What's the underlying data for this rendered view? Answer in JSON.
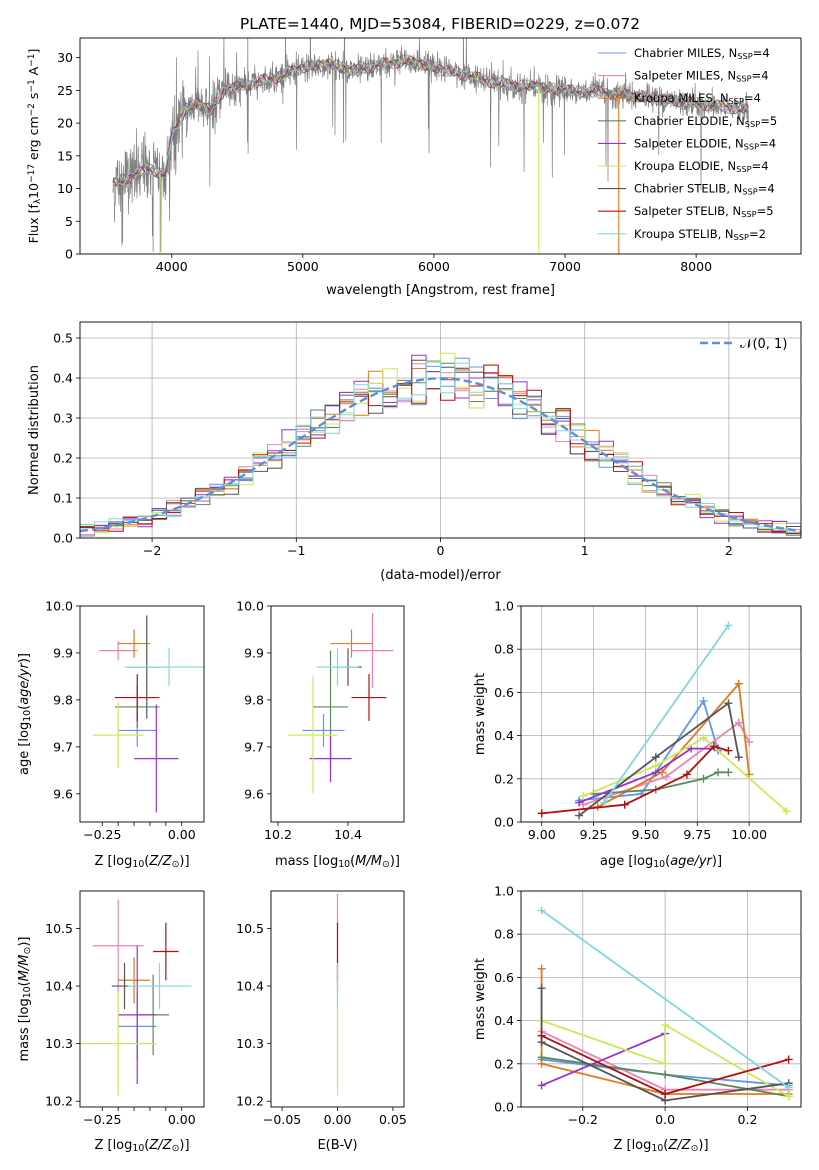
{
  "figure": {
    "title": "PLATE=1440, MJD=53084, FIBERID=0229, z=0.072"
  },
  "colors": {
    "Chabrier MILES": "#6495ed",
    "Salpeter MILES": "#ee82b4",
    "Kroupa MILES": "#e07a1f",
    "Chabrier ELODIE": "#5a8a5a",
    "Salpeter ELODIE": "#9932cc",
    "Kroupa ELODIE": "#cde85a",
    "Chabrier STELIB": "#555555",
    "Salpeter STELIB": "#b01010",
    "Kroupa STELIB": "#7fd8e0"
  },
  "legend_spectrum": [
    {
      "label": "Chabrier MILES, N",
      "sub": "SSP",
      "suffix": "=4",
      "color_key": "Chabrier MILES"
    },
    {
      "label": "Salpeter MILES, N",
      "sub": "SSP",
      "suffix": "=4",
      "color_key": "Salpeter MILES"
    },
    {
      "label": "Kroupa MILES, N",
      "sub": "SSP",
      "suffix": "=4",
      "color_key": "Kroupa MILES"
    },
    {
      "label": "Chabrier ELODIE, N",
      "sub": "SSP",
      "suffix": "=5",
      "color_key": "Chabrier ELODIE"
    },
    {
      "label": "Salpeter ELODIE, N",
      "sub": "SSP",
      "suffix": "=4",
      "color_key": "Salpeter ELODIE"
    },
    {
      "label": "Kroupa ELODIE, N",
      "sub": "SSP",
      "suffix": "=4",
      "color_key": "Kroupa ELODIE"
    },
    {
      "label": "Chabrier STELIB, N",
      "sub": "SSP",
      "suffix": "=4",
      "color_key": "Chabrier STELIB"
    },
    {
      "label": "Salpeter STELIB, N",
      "sub": "SSP",
      "suffix": "=5",
      "color_key": "Salpeter STELIB"
    },
    {
      "label": "Kroupa STELIB, N",
      "sub": "SSP",
      "suffix": "=2",
      "color_key": "Kroupa STELIB"
    }
  ],
  "chart_data": [
    {
      "id": "spectrum",
      "type": "line",
      "xlabel": "wavelength [Angstrom, rest frame]",
      "ylabel_parts": [
        "Flux [f",
        "λ",
        "10",
        "−17",
        " erg cm",
        "−2",
        " s",
        "−1",
        " A",
        "−1",
        "]"
      ],
      "xlim": [
        3300,
        8800
      ],
      "ylim": [
        0,
        33
      ],
      "xticks": [
        4000,
        5000,
        6000,
        7000,
        8000
      ],
      "yticks": [
        0,
        5,
        10,
        15,
        20,
        25,
        30
      ],
      "grid": false,
      "legend": "top-right",
      "continuum_knots": [
        [
          3550,
          10.5
        ],
        [
          3700,
          12
        ],
        [
          3850,
          13
        ],
        [
          3950,
          12
        ],
        [
          4000,
          18
        ],
        [
          4100,
          22
        ],
        [
          4200,
          23
        ],
        [
          4300,
          22
        ],
        [
          4400,
          25
        ],
        [
          4600,
          26
        ],
        [
          4800,
          27
        ],
        [
          5000,
          28.5
        ],
        [
          5200,
          29
        ],
        [
          5400,
          28
        ],
        [
          5600,
          29
        ],
        [
          5800,
          29.5
        ],
        [
          6000,
          28.5
        ],
        [
          6200,
          27.5
        ],
        [
          6500,
          26
        ],
        [
          6800,
          25.5
        ],
        [
          7000,
          25
        ],
        [
          7400,
          24.5
        ],
        [
          7800,
          23.5
        ],
        [
          8200,
          22.5
        ],
        [
          8400,
          22
        ]
      ],
      "series_x_range": [
        3550,
        8400
      ],
      "drops": [
        {
          "x": 3910,
          "y": 0,
          "series": "Kroupa ELODIE"
        },
        {
          "x": 6800,
          "y": 0,
          "series": "Kroupa ELODIE"
        },
        {
          "x": 7410,
          "y": 0,
          "series": "Kroupa MILES"
        }
      ]
    },
    {
      "id": "residuals",
      "type": "histogram",
      "xlabel": "(data-model)/error",
      "ylabel": "Normed distribution",
      "xlim": [
        -2.5,
        2.5
      ],
      "ylim": [
        0,
        0.54
      ],
      "xticks": [
        -2,
        -1,
        0,
        1,
        2
      ],
      "xtick_labels": [
        "−2",
        "−1",
        "0",
        "1",
        "2"
      ],
      "yticks": [
        0,
        0.1,
        0.2,
        0.3,
        0.4,
        0.5
      ],
      "ytick_labels": [
        "0.0",
        "0.1",
        "0.2",
        "0.3",
        "0.4",
        "0.5"
      ],
      "grid": true,
      "bin_width": 0.1,
      "bin_start": -2.5,
      "legend_label": "𝒩(0, 1)",
      "legend": "top-right"
    },
    {
      "id": "age-vs-Z",
      "type": "errorbar",
      "xlabel": "Z [log10(Z/Z⊙)]",
      "ylabel": "age  [log10(age/yr)]",
      "xlim": [
        -0.32,
        0.07
      ],
      "ylim": [
        9.54,
        10.0
      ],
      "xticks": [
        -0.25,
        -0.2,
        -0.15,
        -0.1,
        -0.05,
        0.0
      ],
      "xtick_labels": [
        "−0.25",
        "",
        "",
        "",
        "",
        "0.00"
      ],
      "yticks": [
        9.6,
        9.7,
        9.8,
        9.9,
        10.0
      ],
      "ytick_labels": [
        "9.6",
        "9.7",
        "9.8",
        "9.9",
        "10.0"
      ],
      "points": [
        {
          "series": "Chabrier MILES",
          "x": -0.14,
          "xerr": 0.06,
          "y": 9.735,
          "yerr": 0.035
        },
        {
          "series": "Salpeter MILES",
          "x": -0.2,
          "xerr": 0.06,
          "y": 9.905,
          "yerr": 0.02
        },
        {
          "series": "Kroupa MILES",
          "x": -0.15,
          "xerr": 0.05,
          "y": 9.92,
          "yerr": 0.03
        },
        {
          "series": "Chabrier ELODIE",
          "x": -0.14,
          "xerr": 0.07,
          "y": 9.785,
          "yerr": 0.045
        },
        {
          "series": "Salpeter ELODIE",
          "x": -0.08,
          "xerr": 0.07,
          "y": 9.675,
          "yerr": 0.115
        },
        {
          "series": "Kroupa ELODIE",
          "x": -0.2,
          "xerr": 0.08,
          "y": 9.725,
          "yerr": 0.07
        },
        {
          "series": "Chabrier STELIB",
          "x": -0.11,
          "xerr": 0.06,
          "y": 9.87,
          "yerr": 0.11
        },
        {
          "series": "Salpeter STELIB",
          "x": -0.14,
          "xerr": 0.07,
          "y": 9.805,
          "yerr": 0.05
        },
        {
          "series": "Kroupa STELIB",
          "x": -0.04,
          "xerr": 0.14,
          "y": 9.87,
          "yerr": 0.04
        }
      ]
    },
    {
      "id": "age-vs-mass",
      "type": "errorbar",
      "xlabel": "mass [log10(M/M⊙)]",
      "ylabel": "",
      "xlim": [
        10.18,
        10.56
      ],
      "ylim": [
        9.54,
        10.0
      ],
      "xticks": [
        10.2,
        10.4
      ],
      "xtick_labels": [
        "10.2",
        "10.4"
      ],
      "yticks": [
        9.6,
        9.7,
        9.8,
        9.9,
        10.0
      ],
      "ytick_labels": [
        "9.6",
        "9.7",
        "9.8",
        "9.9",
        "10.0"
      ],
      "points": [
        {
          "series": "Chabrier MILES",
          "x": 10.33,
          "xerr": 0.06,
          "y": 9.735,
          "yerr": 0.035
        },
        {
          "series": "Salpeter MILES",
          "x": 10.47,
          "xerr": 0.06,
          "y": 9.905,
          "yerr": 0.08
        },
        {
          "series": "Kroupa MILES",
          "x": 10.41,
          "xerr": 0.06,
          "y": 9.92,
          "yerr": 0.03
        },
        {
          "series": "Chabrier ELODIE",
          "x": 10.35,
          "xerr": 0.05,
          "y": 9.785,
          "yerr": 0.12
        },
        {
          "series": "Salpeter ELODIE",
          "x": 10.35,
          "xerr": 0.06,
          "y": 9.675,
          "yerr": 0.05
        },
        {
          "series": "Kroupa ELODIE",
          "x": 10.3,
          "xerr": 0.07,
          "y": 9.725,
          "yerr": 0.125
        },
        {
          "series": "Chabrier STELIB",
          "x": 10.4,
          "xerr": 0.04,
          "y": 9.87,
          "yerr": 0.04
        },
        {
          "series": "Salpeter STELIB",
          "x": 10.46,
          "xerr": 0.05,
          "y": 9.805,
          "yerr": 0.05
        },
        {
          "series": "Kroupa STELIB",
          "x": 10.37,
          "xerr": 0.06,
          "y": 9.87,
          "yerr": 0.04
        }
      ]
    },
    {
      "id": "weight-vs-age",
      "type": "line",
      "xlabel": "age  [log10(age/yr)]",
      "ylabel": "mass weight",
      "xlim": [
        8.9,
        10.25
      ],
      "ylim": [
        0,
        1.0
      ],
      "xticks": [
        9.0,
        9.25,
        9.5,
        9.75,
        10.0
      ],
      "xtick_labels": [
        "9.00",
        "9.25",
        "9.50",
        "9.75",
        "10.00"
      ],
      "yticks": [
        0,
        0.2,
        0.4,
        0.6,
        0.8,
        1.0
      ],
      "ytick_labels": [
        "0.0",
        "0.2",
        "0.4",
        "0.6",
        "0.8",
        "1.0"
      ],
      "grid": true,
      "series": [
        {
          "name": "Chabrier MILES",
          "x": [
            9.18,
            9.48,
            9.78,
            9.85
          ],
          "y": [
            0.1,
            0.13,
            0.56,
            0.33
          ]
        },
        {
          "name": "Salpeter MILES",
          "x": [
            9.2,
            9.6,
            9.95,
            10.0
          ],
          "y": [
            0.08,
            0.21,
            0.46,
            0.37
          ]
        },
        {
          "name": "Kroupa MILES",
          "x": [
            9.27,
            9.58,
            9.95,
            10.0
          ],
          "y": [
            0.07,
            0.23,
            0.64,
            0.22
          ]
        },
        {
          "name": "Chabrier ELODIE",
          "x": [
            9.25,
            9.55,
            9.78,
            9.85,
            9.9
          ],
          "y": [
            0.13,
            0.15,
            0.2,
            0.23,
            0.23
          ]
        },
        {
          "name": "Salpeter ELODIE",
          "x": [
            9.18,
            9.55,
            9.72,
            9.85
          ],
          "y": [
            0.09,
            0.23,
            0.34,
            0.34
          ]
        },
        {
          "name": "Kroupa ELODIE",
          "x": [
            9.2,
            9.55,
            9.78,
            10.18
          ],
          "y": [
            0.12,
            0.26,
            0.39,
            0.05
          ]
        },
        {
          "name": "Chabrier STELIB",
          "x": [
            9.18,
            9.55,
            9.9,
            9.95
          ],
          "y": [
            0.03,
            0.3,
            0.55,
            0.3
          ]
        },
        {
          "name": "Salpeter STELIB",
          "x": [
            9.0,
            9.4,
            9.7,
            9.83,
            9.9
          ],
          "y": [
            0.04,
            0.08,
            0.22,
            0.35,
            0.33
          ]
        },
        {
          "name": "Kroupa STELIB",
          "x": [
            9.3,
            9.9
          ],
          "y": [
            0.09,
            0.91
          ]
        }
      ]
    },
    {
      "id": "mass-vs-Z",
      "type": "errorbar",
      "xlabel": "Z [log10(Z/Z⊙)]",
      "ylabel": "mass [log10(M/M⊙)]",
      "xlim": [
        -0.32,
        0.07
      ],
      "ylim": [
        10.19,
        10.565
      ],
      "xticks": [
        -0.25,
        -0.2,
        -0.15,
        -0.1,
        -0.05,
        0.0
      ],
      "xtick_labels": [
        "−0.25",
        "",
        "",
        "",
        "",
        "0.00"
      ],
      "yticks": [
        10.2,
        10.3,
        10.4,
        10.5
      ],
      "ytick_labels": [
        "10.2",
        "10.3",
        "10.4",
        "10.5"
      ],
      "points": [
        {
          "series": "Chabrier MILES",
          "x": -0.14,
          "xerr": 0.06,
          "y": 10.33,
          "yerr": 0.06
        },
        {
          "series": "Salpeter MILES",
          "x": -0.2,
          "xerr": 0.08,
          "y": 10.47,
          "yerr": 0.08
        },
        {
          "series": "Kroupa MILES",
          "x": -0.15,
          "xerr": 0.05,
          "y": 10.41,
          "yerr": 0.04
        },
        {
          "series": "Chabrier ELODIE",
          "x": -0.09,
          "xerr": 0.05,
          "y": 10.35,
          "yerr": 0.07
        },
        {
          "series": "Salpeter ELODIE",
          "x": -0.14,
          "xerr": 0.06,
          "y": 10.35,
          "yerr": 0.12
        },
        {
          "series": "Kroupa ELODIE",
          "x": -0.2,
          "xerr": 0.12,
          "y": 10.3,
          "yerr": 0.09
        },
        {
          "series": "Chabrier STELIB",
          "x": -0.18,
          "xerr": 0.04,
          "y": 10.4,
          "yerr": 0.04
        },
        {
          "series": "Salpeter STELIB",
          "x": -0.05,
          "xerr": 0.04,
          "y": 10.46,
          "yerr": 0.05
        },
        {
          "series": "Kroupa STELIB",
          "x": -0.07,
          "xerr": 0.1,
          "y": 10.4,
          "yerr": 0.04
        }
      ]
    },
    {
      "id": "mass-vs-EBV",
      "type": "errorbar",
      "xlabel": "E(B-V)",
      "ylabel": "",
      "xlim": [
        -0.06,
        0.06
      ],
      "ylim": [
        10.19,
        10.565
      ],
      "xticks": [
        -0.05,
        0.0,
        0.05
      ],
      "xtick_labels": [
        "−0.05",
        "0.00",
        "0.05"
      ],
      "yticks": [
        10.2,
        10.3,
        10.4,
        10.5
      ],
      "ytick_labels": [
        "10.2",
        "10.3",
        "10.4",
        "10.5"
      ],
      "points": [
        {
          "series": "Kroupa ELODIE",
          "x": 0.0,
          "xerr": 0.0,
          "y": 10.31,
          "yerr": 0.1
        },
        {
          "series": "Salpeter MILES",
          "x": 0.0,
          "xerr": 0.0,
          "y": 10.48,
          "yerr": 0.08
        },
        {
          "series": "Salpeter STELIB",
          "x": 0.0,
          "xerr": 0.0,
          "y": 10.46,
          "yerr": 0.05
        },
        {
          "series": "Kroupa STELIB",
          "x": 0.0,
          "xerr": 0.0,
          "y": 10.4,
          "yerr": 0.04
        }
      ]
    },
    {
      "id": "weight-vs-Z",
      "type": "line",
      "xlabel": "Z [log10(Z/Z⊙)]",
      "ylabel": "mass weight",
      "xlim": [
        -0.35,
        0.33
      ],
      "ylim": [
        0,
        1.0
      ],
      "xticks": [
        -0.2,
        0.0,
        0.2
      ],
      "xtick_labels": [
        "−0.2",
        "0.0",
        "0.2"
      ],
      "yticks": [
        0,
        0.2,
        0.4,
        0.6,
        0.8,
        1.0
      ],
      "ytick_labels": [
        "0.0",
        "0.2",
        "0.4",
        "0.6",
        "0.8",
        "1.0"
      ],
      "grid": true,
      "series": [
        {
          "name": "Chabrier MILES",
          "x": [
            -0.3,
            0.0,
            0.3
          ],
          "y": [
            0.22,
            0.15,
            0.1
          ]
        },
        {
          "name": "Salpeter MILES",
          "x": [
            -0.3,
            0.0,
            0.3
          ],
          "y": [
            0.35,
            0.08,
            0.08
          ]
        },
        {
          "name": "Kroupa MILES",
          "x": [
            -0.3,
            -0.3,
            0.0,
            0.3
          ],
          "y": [
            0.64,
            0.2,
            0.06,
            0.06
          ]
        },
        {
          "name": "Chabrier ELODIE",
          "x": [
            -0.3,
            0.0,
            0.3
          ],
          "y": [
            0.23,
            0.15,
            0.05
          ]
        },
        {
          "name": "Salpeter ELODIE",
          "x": [
            -0.3,
            0.0
          ],
          "y": [
            0.1,
            0.34
          ]
        },
        {
          "name": "Kroupa ELODIE",
          "x": [
            -0.3,
            0.0,
            0.0,
            0.3
          ],
          "y": [
            0.4,
            0.2,
            0.38,
            0.05
          ]
        },
        {
          "name": "Chabrier STELIB",
          "x": [
            -0.3,
            -0.3,
            0.0,
            0.3
          ],
          "y": [
            0.55,
            0.3,
            0.03,
            0.11
          ]
        },
        {
          "name": "Salpeter STELIB",
          "x": [
            -0.3,
            0.0,
            0.3
          ],
          "y": [
            0.33,
            0.06,
            0.22
          ]
        },
        {
          "name": "Kroupa STELIB",
          "x": [
            -0.3,
            0.3
          ],
          "y": [
            0.91,
            0.09
          ]
        }
      ]
    }
  ]
}
